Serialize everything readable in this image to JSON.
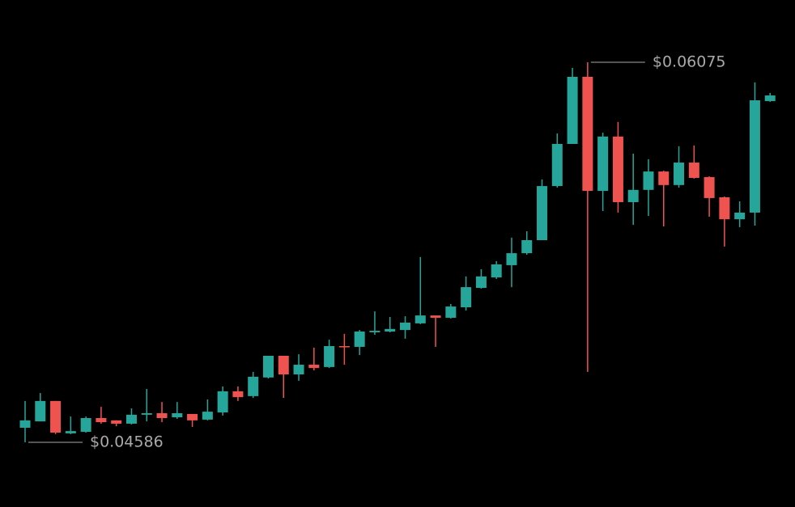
{
  "chart_data": {
    "type": "candlestick",
    "open": [
      0.04643,
      0.04668,
      0.04748,
      0.04621,
      0.04627,
      0.04681,
      0.04672,
      0.04659,
      0.04694,
      0.047,
      0.04684,
      0.04697,
      0.04675,
      0.04703,
      0.04786,
      0.04767,
      0.0484,
      0.04925,
      0.04852,
      0.0489,
      0.04881,
      0.04963,
      0.0496,
      0.05017,
      0.0502,
      0.05026,
      0.05052,
      0.05083,
      0.05074,
      0.05115,
      0.05191,
      0.05232,
      0.0528,
      0.05327,
      0.05378,
      0.0559,
      0.05755,
      0.06018,
      0.05571,
      0.05784,
      0.05527,
      0.05575,
      0.05647,
      0.05594,
      0.05682,
      0.05625,
      0.05546,
      0.0546,
      0.05486,
      0.05923
    ],
    "high": [
      0.04748,
      0.04779,
      0.04748,
      0.04687,
      0.04687,
      0.04725,
      0.04672,
      0.04719,
      0.04795,
      0.04744,
      0.04744,
      0.04697,
      0.04754,
      0.04805,
      0.04805,
      0.04862,
      0.04925,
      0.04925,
      0.04931,
      0.04957,
      0.04988,
      0.05011,
      0.05026,
      0.05099,
      0.05077,
      0.0508,
      0.05312,
      0.05083,
      0.05128,
      0.05236,
      0.05264,
      0.05296,
      0.05388,
      0.05413,
      0.05616,
      0.05796,
      0.06053,
      0.06075,
      0.05799,
      0.05841,
      0.05717,
      0.05695,
      0.0565,
      0.05746,
      0.05749,
      0.05628,
      0.05549,
      0.0553,
      0.05996,
      0.05955
    ],
    "low": [
      0.04586,
      0.04668,
      0.04618,
      0.04618,
      0.04624,
      0.04659,
      0.04649,
      0.04656,
      0.04668,
      0.04665,
      0.04678,
      0.04646,
      0.04672,
      0.04691,
      0.04748,
      0.0476,
      0.04836,
      0.0476,
      0.04827,
      0.04868,
      0.04877,
      0.0489,
      0.04928,
      0.05007,
      0.05017,
      0.04992,
      0.05049,
      0.0496,
      0.05071,
      0.05102,
      0.05188,
      0.05226,
      0.05194,
      0.05321,
      0.05378,
      0.05584,
      0.05755,
      0.04862,
      0.05492,
      0.05486,
      0.05438,
      0.05473,
      0.05432,
      0.05584,
      0.05619,
      0.0547,
      0.05353,
      0.05429,
      0.05435,
      0.0592
    ],
    "close": [
      0.04672,
      0.04748,
      0.04624,
      0.0463,
      0.04681,
      0.04665,
      0.04659,
      0.04694,
      0.047,
      0.04681,
      0.047,
      0.04672,
      0.04706,
      0.04786,
      0.04763,
      0.04843,
      0.04925,
      0.04852,
      0.0489,
      0.04877,
      0.04963,
      0.0496,
      0.0502,
      0.05023,
      0.0503,
      0.05055,
      0.05083,
      0.05074,
      0.05118,
      0.05194,
      0.05236,
      0.05283,
      0.05327,
      0.05378,
      0.0559,
      0.05755,
      0.06018,
      0.05571,
      0.05784,
      0.05527,
      0.05575,
      0.05647,
      0.05594,
      0.05682,
      0.05622,
      0.05543,
      0.0546,
      0.05486,
      0.05926,
      0.05945
    ],
    "up_color": "#26a69a",
    "down_color": "#ef5350",
    "annotations": [
      {
        "value": 0.06075,
        "label": "$0.06075"
      },
      {
        "value": 0.04586,
        "label": "$0.04586"
      }
    ]
  }
}
